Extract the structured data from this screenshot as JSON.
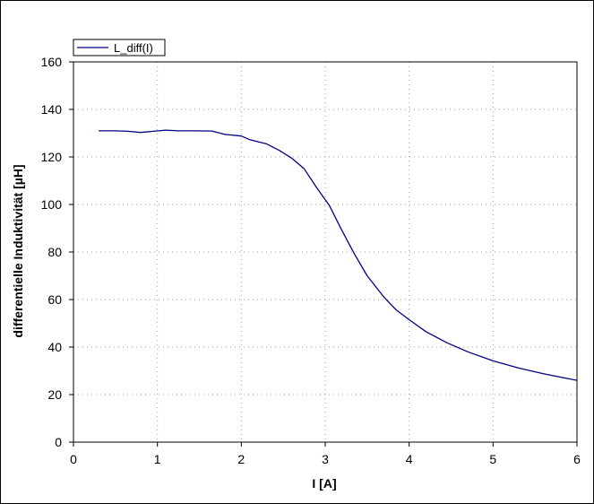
{
  "chart_data": {
    "type": "line",
    "xlabel": "I [A]",
    "ylabel": "differentielle Induktivität [µH]",
    "xlim": [
      0,
      6
    ],
    "ylim": [
      0,
      160
    ],
    "x_ticks": [
      0,
      1,
      2,
      3,
      4,
      5,
      6
    ],
    "y_ticks": [
      0,
      20,
      40,
      60,
      80,
      100,
      120,
      140,
      160
    ],
    "grid": true,
    "legend_position": "top-left",
    "series": [
      {
        "name": "L_diff(I)",
        "color": "#000080",
        "points": [
          [
            0.3,
            131
          ],
          [
            0.5,
            131
          ],
          [
            0.65,
            130.8
          ],
          [
            0.8,
            130.3
          ],
          [
            0.95,
            130.8
          ],
          [
            1.1,
            131.3
          ],
          [
            1.25,
            131
          ],
          [
            1.45,
            131
          ],
          [
            1.65,
            130.9
          ],
          [
            1.8,
            129.5
          ],
          [
            2.0,
            128.8
          ],
          [
            2.1,
            127.3
          ],
          [
            2.3,
            125.5
          ],
          [
            2.45,
            122.8
          ],
          [
            2.6,
            119.5
          ],
          [
            2.75,
            115
          ],
          [
            2.9,
            107
          ],
          [
            3.05,
            99.5
          ],
          [
            3.2,
            89
          ],
          [
            3.35,
            79
          ],
          [
            3.5,
            70
          ],
          [
            3.7,
            61
          ],
          [
            3.85,
            55.5
          ],
          [
            4.0,
            51.5
          ],
          [
            4.2,
            46.5
          ],
          [
            4.45,
            41.8
          ],
          [
            4.7,
            38
          ],
          [
            5.0,
            34.2
          ],
          [
            5.3,
            31.2
          ],
          [
            5.6,
            28.8
          ],
          [
            5.85,
            27
          ],
          [
            6.0,
            26
          ]
        ]
      }
    ]
  }
}
